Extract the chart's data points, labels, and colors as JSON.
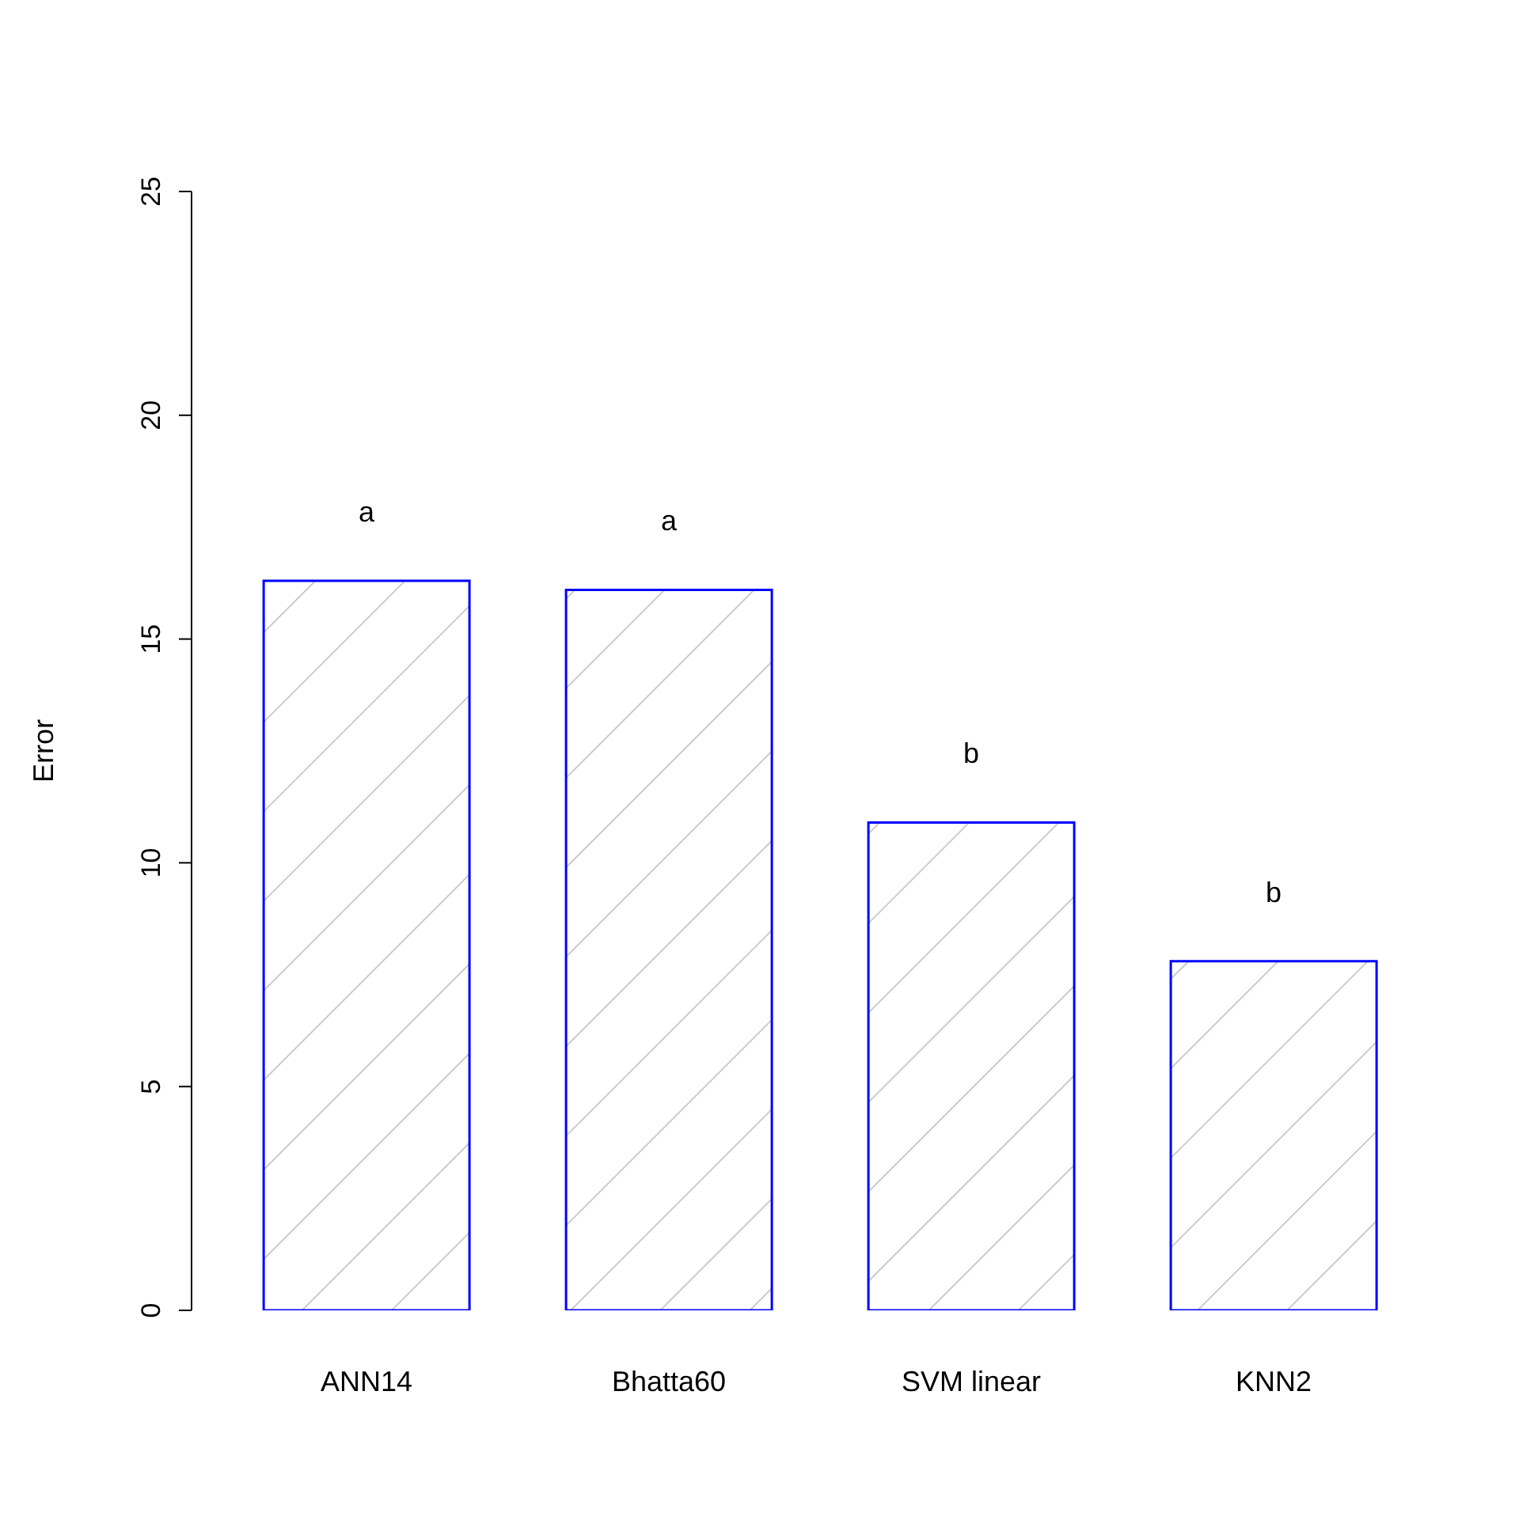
{
  "chart_data": {
    "type": "bar",
    "ylabel": "Error",
    "categories": [
      "ANN14",
      "Bhatta60",
      "SVM linear",
      "KNN2"
    ],
    "values": [
      16.3,
      16.1,
      10.9,
      7.8
    ],
    "color": "#0000ff",
    "ylim": [
      0,
      25
    ],
    "yticks": [
      0,
      5,
      10,
      15,
      20,
      25
    ],
    "annotations": [
      "a",
      "a",
      "b",
      "b"
    ]
  }
}
